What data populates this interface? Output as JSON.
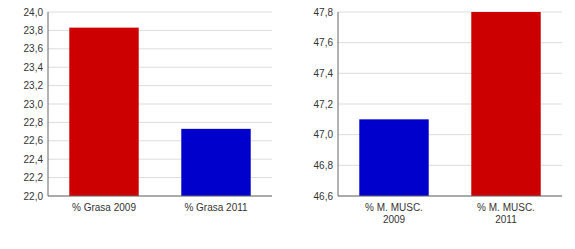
{
  "chart_data": [
    {
      "type": "bar",
      "categories": [
        "% Grasa 2009",
        "% Grasa 2011"
      ],
      "values": [
        23.83,
        22.73
      ],
      "colors": [
        "#CC0000",
        "#0000CC"
      ],
      "ylim": [
        22.0,
        24.0
      ],
      "yticks": [
        {
          "value": 22.0,
          "label": "22,0"
        },
        {
          "value": 22.2,
          "label": "22,2"
        },
        {
          "value": 22.4,
          "label": "22,4"
        },
        {
          "value": 22.6,
          "label": "22,6"
        },
        {
          "value": 22.8,
          "label": "22,8"
        },
        {
          "value": 23.0,
          "label": "23,0"
        },
        {
          "value": 23.2,
          "label": "23,2"
        },
        {
          "value": 23.4,
          "label": "23,4"
        },
        {
          "value": 23.6,
          "label": "23,6"
        },
        {
          "value": 23.8,
          "label": "23,8"
        },
        {
          "value": 24.0,
          "label": "24,0"
        }
      ],
      "grid": true
    },
    {
      "type": "bar",
      "categories": [
        "% M. MUSC.\n2009",
        "% M. MUSC.\n2011"
      ],
      "values": [
        47.1,
        47.8
      ],
      "colors": [
        "#0000CC",
        "#CC0000"
      ],
      "ylim": [
        46.6,
        47.8
      ],
      "yticks": [
        {
          "value": 46.6,
          "label": "46,6"
        },
        {
          "value": 46.8,
          "label": "46,8"
        },
        {
          "value": 47.0,
          "label": "47,0"
        },
        {
          "value": 47.2,
          "label": "47,2"
        },
        {
          "value": 47.4,
          "label": "47,4"
        },
        {
          "value": 47.6,
          "label": "47,6"
        },
        {
          "value": 47.8,
          "label": "47,8"
        }
      ],
      "grid": true
    }
  ]
}
